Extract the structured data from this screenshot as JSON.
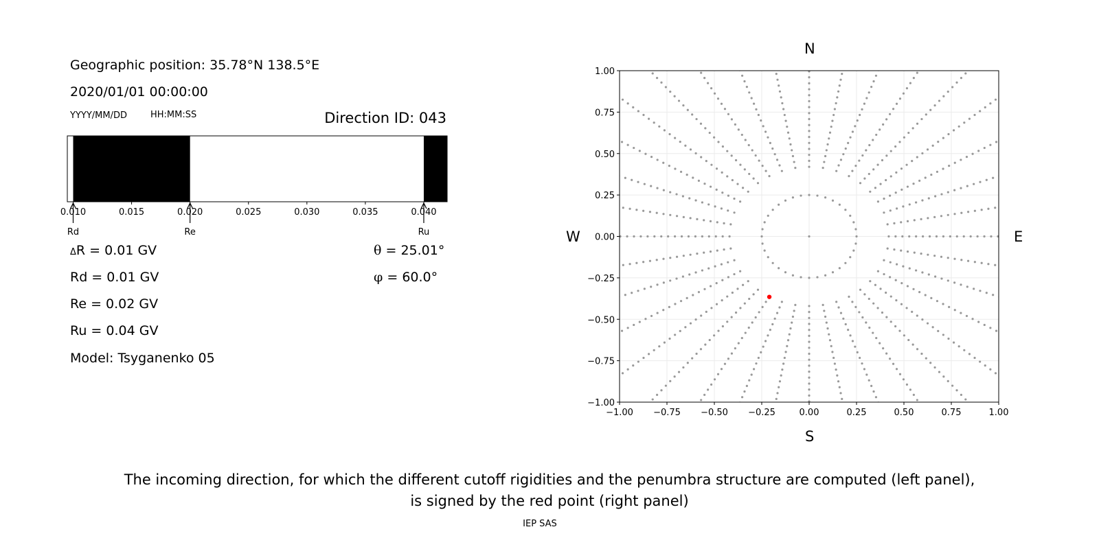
{
  "header": {
    "geo_position": "Geographic position: 35.78°N 138.5°E",
    "datetime": "2020/01/01 00:00:00",
    "date_format": "YYYY/MM/DD",
    "time_format": "HH:MM:SS",
    "direction_id": "Direction ID: 043"
  },
  "stats": {
    "delta_r_symbol": "Δ",
    "delta_r": "R = 0.01 GV",
    "rd": "Rd = 0.01 GV",
    "re": "Re = 0.02 GV",
    "ru": "Ru = 0.04 GV",
    "model": "Model: Tsyganenko 05",
    "theta_symbol": "θ",
    "theta": "= 25.01°",
    "phi_symbol": "φ",
    "phi": "= 60.0°"
  },
  "compass": {
    "north": "N",
    "south": "S",
    "west": "W",
    "east": "E"
  },
  "caption": {
    "line1": "The incoming direction, for which the different cutoff rigidities and the penumbra structure are computed (left panel),",
    "line2": "is signed by the red point (right panel)"
  },
  "credit": "IEP SAS",
  "chart_data": [
    {
      "type": "bar",
      "description_of_encoding": "penumbra band: black = forbidden, white = allowed",
      "xlim": [
        0.0095,
        0.042
      ],
      "x_ticks": [
        "0.010",
        "0.015",
        "0.020",
        "0.025",
        "0.030",
        "0.035",
        "0.040"
      ],
      "x_tick_values": [
        0.01,
        0.015,
        0.02,
        0.025,
        0.03,
        0.035,
        0.04
      ],
      "forbidden_intervals": [
        [
          0.01,
          0.02
        ],
        [
          0.04,
          0.042
        ]
      ],
      "markers": [
        {
          "label": "Rd",
          "value": 0.01
        },
        {
          "label": "Re",
          "value": 0.02
        },
        {
          "label": "Ru",
          "value": 0.04
        }
      ]
    },
    {
      "type": "scatter",
      "xlim": [
        -1.0,
        1.0
      ],
      "ylim": [
        -1.0,
        1.0
      ],
      "x_ticks": [
        "−1.00",
        "−0.75",
        "−0.50",
        "−0.25",
        "0.00",
        "0.25",
        "0.50",
        "0.75",
        "1.00"
      ],
      "y_ticks": [
        "1.00",
        "0.75",
        "0.50",
        "0.25",
        "0.00",
        "−0.25",
        "−0.50",
        "−0.75",
        "−1.00"
      ],
      "tick_values": [
        -1.0,
        -0.75,
        -0.5,
        -0.25,
        0.0,
        0.25,
        0.5,
        0.75,
        1.0
      ],
      "grid": true,
      "series_grid": {
        "color": "#999999",
        "center": [
          0,
          0
        ],
        "inner_circle_radius": 0.25,
        "inner_circle_points": 36,
        "spokes_count": 36,
        "spoke_r_min": 0.42,
        "spoke_r_step": 0.036,
        "spoke_points": 30
      },
      "highlight_point": {
        "x": -0.21,
        "y": -0.365,
        "color": "#ff0000"
      }
    }
  ]
}
